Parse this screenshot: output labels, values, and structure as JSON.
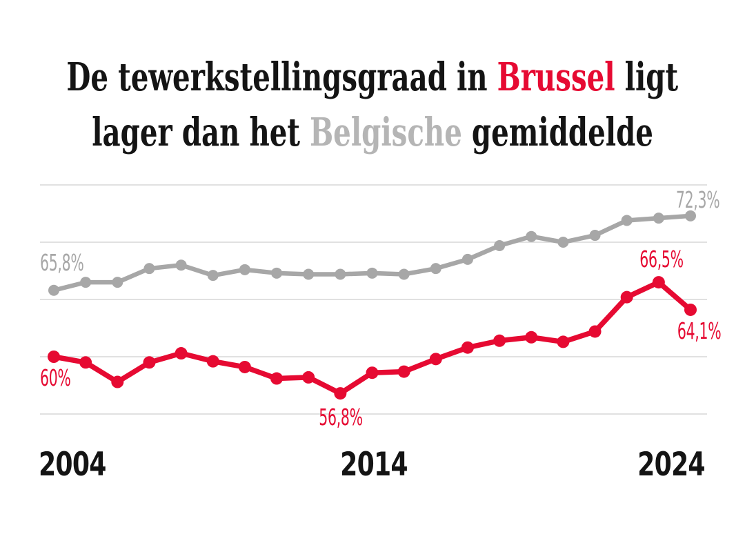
{
  "title": {
    "line1_pre": "De tewerkstellingsgraad in ",
    "line1_accent": "Brussel",
    "line1_post": " ligt",
    "line2_pre": "lager dan het ",
    "line2_accent": "Belgische",
    "line2_post": " gemiddelde"
  },
  "colors": {
    "accent_red": "#e60a32",
    "series_gray": "#a7a7a7",
    "title_gray": "#b5b5b5",
    "grid_gray": "#d7d7d7",
    "text_black": "#141414"
  },
  "x_axis": {
    "ticks": [
      "2004",
      "2014",
      "2024"
    ]
  },
  "chart_data": {
    "type": "line",
    "x": [
      2004,
      2005,
      2006,
      2007,
      2008,
      2009,
      2010,
      2011,
      2012,
      2013,
      2014,
      2015,
      2016,
      2017,
      2018,
      2019,
      2020,
      2021,
      2022,
      2023,
      2024
    ],
    "series": [
      {
        "name": "België (gemiddelde)",
        "color": "#a7a7a7",
        "values": [
          65.8,
          66.5,
          66.5,
          67.7,
          68.0,
          67.1,
          67.6,
          67.3,
          67.2,
          67.2,
          67.3,
          67.2,
          67.7,
          68.5,
          69.7,
          70.5,
          70.0,
          70.6,
          71.9,
          72.1,
          72.3
        ]
      },
      {
        "name": "Brussel",
        "color": "#e60a32",
        "values": [
          60.0,
          59.5,
          57.8,
          59.5,
          60.3,
          59.6,
          59.1,
          58.1,
          58.2,
          56.8,
          58.6,
          58.7,
          59.8,
          60.8,
          61.4,
          61.7,
          61.3,
          62.2,
          65.2,
          66.5,
          64.1
        ]
      }
    ],
    "ylim": [
      53,
      77
    ],
    "gridline_values": [
      55,
      60,
      65,
      70,
      75
    ],
    "grid": true,
    "legend_position": "none",
    "annotations": [
      {
        "series": "België (gemiddelde)",
        "year": 2004,
        "text": "65,8%"
      },
      {
        "series": "België (gemiddelde)",
        "year": 2024,
        "text": "72,3%"
      },
      {
        "series": "Brussel",
        "year": 2004,
        "text": "60%"
      },
      {
        "series": "Brussel",
        "year": 2013,
        "text": "56,8%"
      },
      {
        "series": "Brussel",
        "year": 2023,
        "text": "66,5%"
      },
      {
        "series": "Brussel",
        "year": 2024,
        "text": "64,1%"
      }
    ]
  }
}
